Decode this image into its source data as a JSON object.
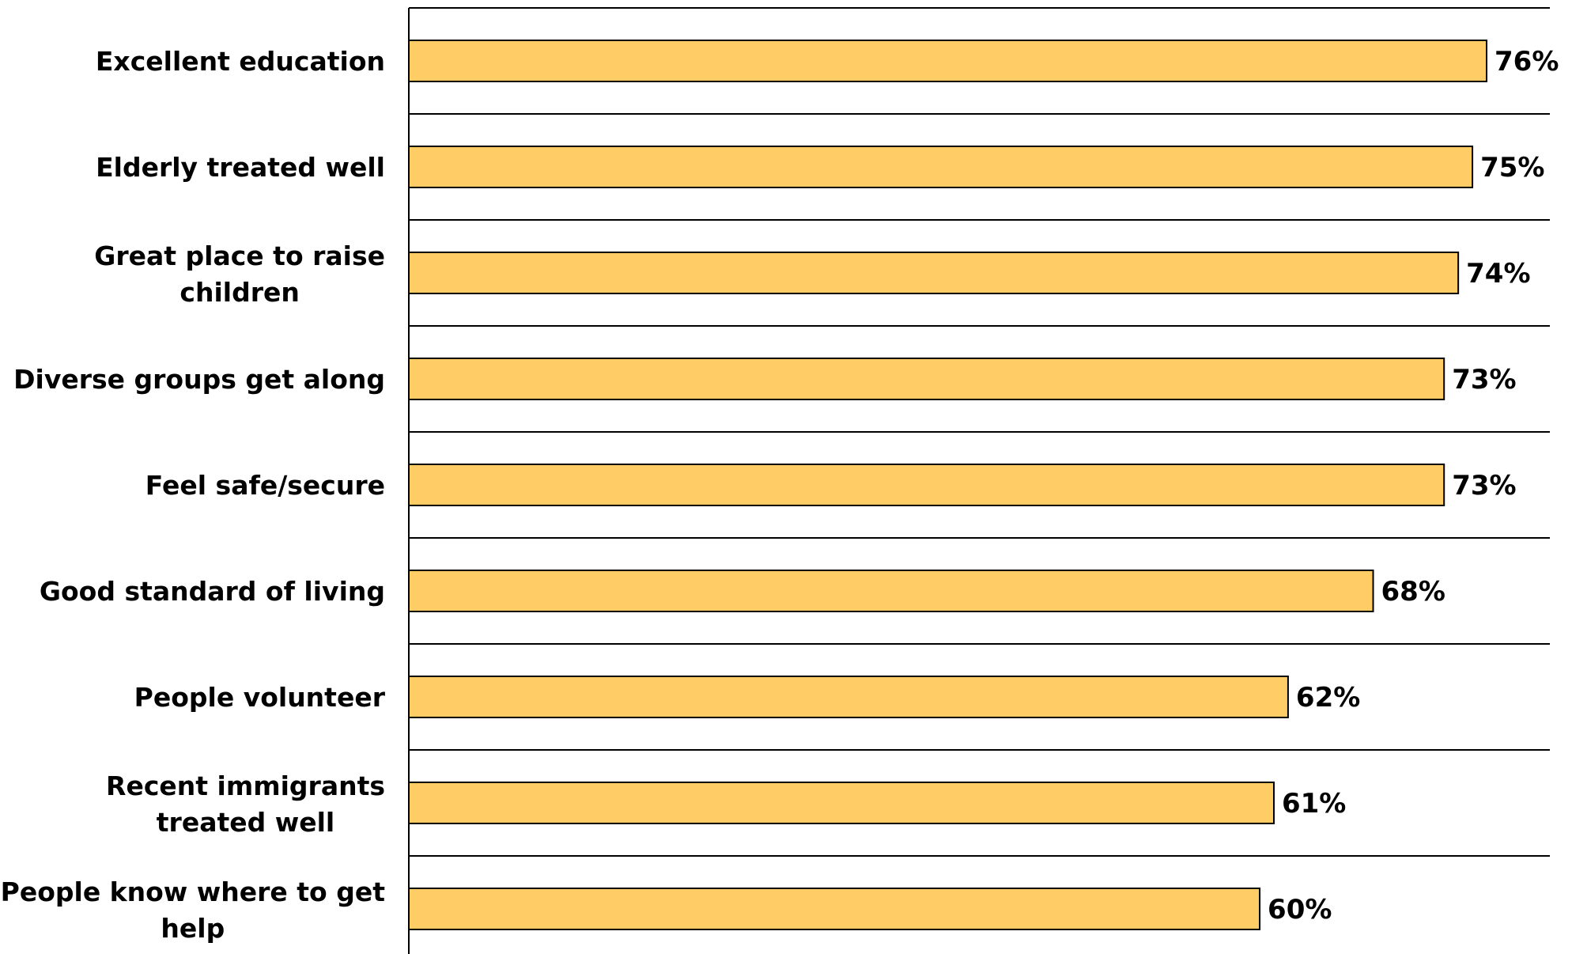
{
  "colors": {
    "bar_fill": "#FFCC66",
    "bar_stroke": "#000000",
    "gridline": "#000000",
    "text": "#000000"
  },
  "chart_data": {
    "type": "bar",
    "orientation": "horizontal",
    "categories": [
      "Excellent education",
      "Elderly treated well",
      "Great place to raise children",
      "Diverse groups get along",
      "Feel safe/secure",
      "Good standard of living",
      "People volunteer",
      "Recent immigrants treated well",
      "People know where to get help"
    ],
    "category_lines": [
      [
        "Excellent education"
      ],
      [
        "Elderly treated well"
      ],
      [
        "Great place to raise",
        "children"
      ],
      [
        "Diverse groups get along"
      ],
      [
        "Feel safe/secure"
      ],
      [
        "Good standard of living"
      ],
      [
        "People volunteer"
      ],
      [
        "Recent immigrants",
        "treated well"
      ],
      [
        "People know where to get",
        "help"
      ]
    ],
    "values": [
      76,
      75,
      74,
      73,
      73,
      68,
      62,
      61,
      60
    ],
    "value_labels": [
      "76%",
      "75%",
      "74%",
      "73%",
      "73%",
      "68%",
      "62%",
      "61%",
      "60%"
    ],
    "xlim": [
      0,
      80
    ],
    "unit": "%",
    "grid": "horizontal separators between categories",
    "legend": "none"
  }
}
